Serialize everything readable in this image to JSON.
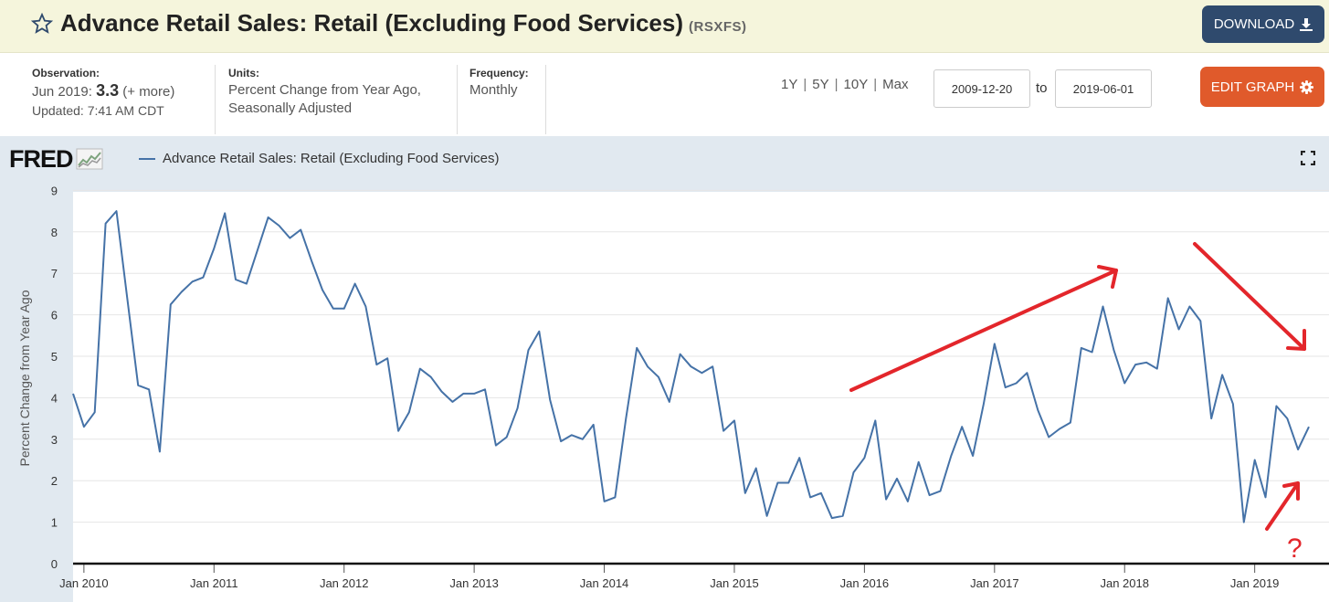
{
  "header": {
    "title": "Advance Retail Sales: Retail (Excluding Food Services)",
    "series_id": "(RSXFS)",
    "download_label": "DOWNLOAD"
  },
  "meta": {
    "observation_label": "Observation:",
    "observation_date": "Jun 2019:",
    "observation_value": "3.3",
    "observation_more": "(+ more)",
    "updated": "Updated: 7:41 AM CDT",
    "units_label": "Units:",
    "units_line1": "Percent Change from Year Ago,",
    "units_line2": "Seasonally Adjusted",
    "frequency_label": "Frequency:",
    "frequency_value": "Monthly"
  },
  "range": {
    "links": [
      "1Y",
      "5Y",
      "10Y",
      "Max"
    ],
    "start_date": "2009-12-20",
    "to_label": "to",
    "end_date": "2019-06-01",
    "edit_label": "EDIT GRAPH"
  },
  "chart_panel": {
    "logo": "FRED",
    "legend": "Advance Retail Sales: Retail (Excluding Food Services)"
  },
  "colors": {
    "series": "#4572a7",
    "annotation": "#e3262b",
    "download_button": "#2f4a6d",
    "edit_button": "#e05a2b",
    "title_bar": "#f5f5dc"
  },
  "chart_data": {
    "type": "line",
    "ylabel": "Percent Change from Year Ago",
    "ylim": [
      0,
      9
    ],
    "yticks": [
      "0",
      "1",
      "2",
      "3",
      "4",
      "5",
      "6",
      "7",
      "8",
      "9"
    ],
    "xticks": [
      "Jan 2010",
      "Jan 2011",
      "Jan 2012",
      "Jan 2013",
      "Jan 2014",
      "Jan 2015",
      "Jan 2016",
      "Jan 2017",
      "Jan 2018",
      "Jan 2019"
    ],
    "xrange": [
      "2009-12",
      "2019-06"
    ],
    "grid": "horizontal",
    "annotation_mark": "?",
    "series": [
      {
        "x": [
          "2009-12",
          "2010-01",
          "2010-02",
          "2010-03",
          "2010-04",
          "2010-05",
          "2010-06",
          "2010-07",
          "2010-08",
          "2010-09",
          "2010-10",
          "2010-11",
          "2010-12",
          "2011-01",
          "2011-02",
          "2011-03",
          "2011-04",
          "2011-05",
          "2011-06",
          "2011-07",
          "2011-08",
          "2011-09",
          "2011-10",
          "2011-11",
          "2011-12",
          "2012-01",
          "2012-02",
          "2012-03",
          "2012-04",
          "2012-05",
          "2012-06",
          "2012-07",
          "2012-08",
          "2012-09",
          "2012-10",
          "2012-11",
          "2012-12",
          "2013-01",
          "2013-02",
          "2013-03",
          "2013-04",
          "2013-05",
          "2013-06",
          "2013-07",
          "2013-08",
          "2013-09",
          "2013-10",
          "2013-11",
          "2013-12",
          "2014-01",
          "2014-02",
          "2014-03",
          "2014-04",
          "2014-05",
          "2014-06",
          "2014-07",
          "2014-08",
          "2014-09",
          "2014-10",
          "2014-11",
          "2014-12",
          "2015-01",
          "2015-02",
          "2015-03",
          "2015-04",
          "2015-05",
          "2015-06",
          "2015-07",
          "2015-08",
          "2015-09",
          "2015-10",
          "2015-11",
          "2015-12",
          "2016-01",
          "2016-02",
          "2016-03",
          "2016-04",
          "2016-05",
          "2016-06",
          "2016-07",
          "2016-08",
          "2016-09",
          "2016-10",
          "2016-11",
          "2016-12",
          "2017-01",
          "2017-02",
          "2017-03",
          "2017-04",
          "2017-05",
          "2017-06",
          "2017-07",
          "2017-08",
          "2017-09",
          "2017-10",
          "2017-11",
          "2017-12",
          "2018-01",
          "2018-02",
          "2018-03",
          "2018-04",
          "2018-05",
          "2018-06",
          "2018-07",
          "2018-08",
          "2018-09",
          "2018-10",
          "2018-11",
          "2018-12",
          "2019-01",
          "2019-02",
          "2019-03",
          "2019-04",
          "2019-05",
          "2019-06"
        ],
        "values": [
          4.1,
          3.3,
          3.65,
          8.2,
          8.5,
          6.4,
          4.3,
          4.2,
          2.7,
          6.25,
          6.55,
          6.8,
          6.9,
          7.6,
          8.45,
          6.85,
          6.75,
          7.55,
          8.35,
          8.15,
          7.85,
          8.05,
          7.3,
          6.6,
          6.15,
          6.15,
          6.75,
          6.2,
          4.8,
          4.95,
          3.2,
          3.65,
          4.7,
          4.5,
          4.15,
          3.9,
          4.1,
          4.1,
          4.2,
          2.85,
          3.05,
          3.75,
          5.15,
          5.6,
          3.95,
          2.95,
          3.1,
          3.0,
          3.35,
          1.5,
          1.6,
          3.5,
          5.2,
          4.75,
          4.5,
          3.9,
          5.05,
          4.75,
          4.6,
          4.75,
          3.2,
          3.45,
          1.7,
          2.3,
          1.15,
          1.95,
          1.95,
          2.55,
          1.6,
          1.7,
          1.1,
          1.15,
          2.2,
          2.55,
          3.45,
          1.55,
          2.05,
          1.5,
          2.45,
          1.65,
          1.75,
          2.6,
          3.3,
          2.6,
          3.85,
          5.3,
          4.25,
          4.35,
          4.6,
          3.7,
          3.05,
          3.25,
          3.4,
          5.2,
          5.1,
          6.2,
          5.15,
          4.35,
          4.8,
          4.85,
          4.7,
          6.4,
          5.65,
          6.2,
          5.85,
          3.5,
          4.55,
          3.85,
          1.0,
          2.5,
          1.6,
          3.8,
          3.5,
          2.75,
          3.3
        ]
      }
    ]
  }
}
